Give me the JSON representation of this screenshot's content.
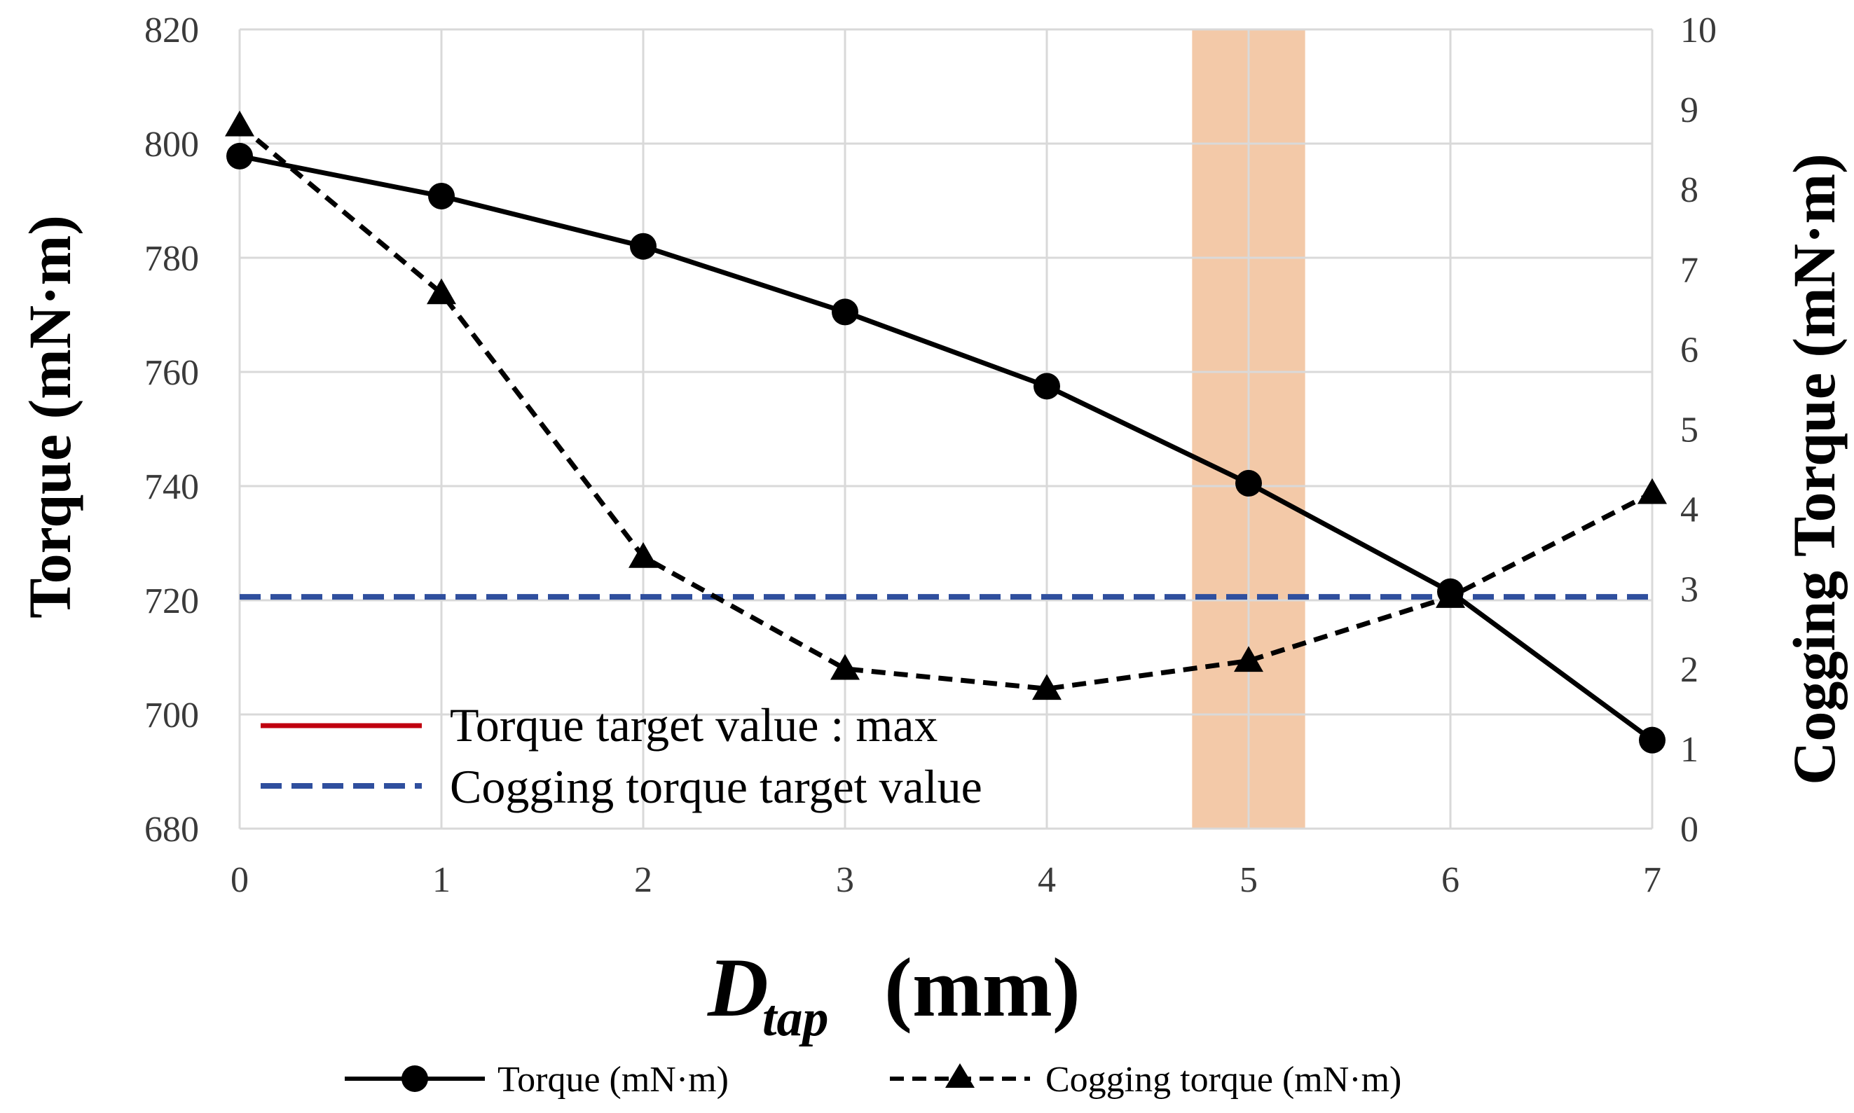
{
  "chart_data": {
    "type": "line",
    "x": [
      0,
      1,
      2,
      3,
      4,
      5,
      6,
      7
    ],
    "xlim": [
      0,
      7
    ],
    "xlabel_main": "D",
    "xlabel_sub": "tap",
    "xlabel_unit": "(mm)",
    "ylabel": "Torque  (mN·m)",
    "ylim": [
      680,
      820
    ],
    "yticks": [
      680,
      700,
      720,
      740,
      760,
      780,
      800,
      820
    ],
    "y2label": "Cogging Torque  (mN·m)",
    "y2lim": [
      0,
      10
    ],
    "y2ticks": [
      0,
      1,
      2,
      3,
      4,
      5,
      6,
      7,
      8,
      9,
      10
    ],
    "xticks": [
      0,
      1,
      2,
      3,
      4,
      5,
      6,
      7
    ],
    "series": [
      {
        "name": "Torque (mN·m)",
        "axis": "left",
        "style": "solid",
        "marker": "circle",
        "color": "#000000",
        "values": [
          797.8,
          790.8,
          782,
          770.5,
          757.5,
          740.5,
          721.5,
          695.5
        ]
      },
      {
        "name": "Cogging torque (mN·m)",
        "axis": "right",
        "style": "dashed",
        "marker": "triangle",
        "color": "#000000",
        "values": [
          8.8,
          6.7,
          3.4,
          2.0,
          1.75,
          2.1,
          2.9,
          4.2
        ]
      }
    ],
    "target_line": {
      "name": "Cogging torque target value",
      "axis": "right",
      "value": 2.9,
      "color": "#2f4f9e",
      "style": "dashed"
    },
    "torque_target": {
      "name": "Torque target value : max",
      "color": "#c0000f"
    },
    "highlight_band": {
      "x_from": 4.72,
      "x_to": 5.28,
      "color": "#f3c9a8"
    },
    "grid": true,
    "legend_inner_position": "bottom-left",
    "legend_bottom_position": "bottom-center"
  }
}
